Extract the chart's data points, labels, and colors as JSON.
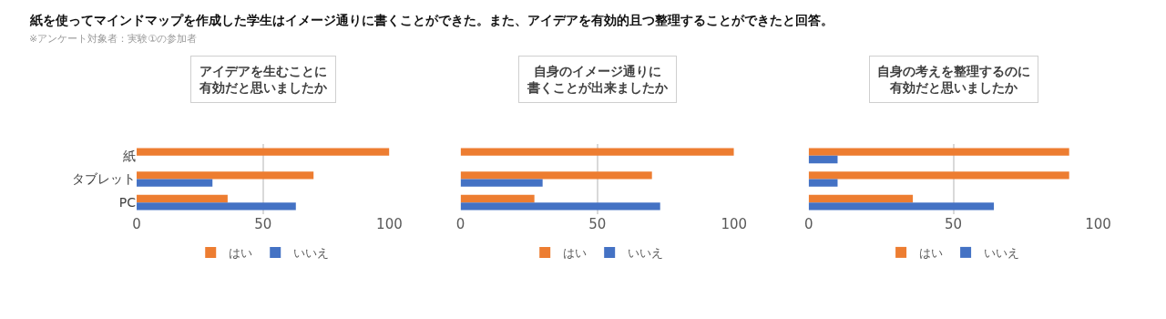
{
  "chart_data": [
    {
      "type": "bar",
      "orientation": "horizontal",
      "title": "アイデアを生むことに有効だと思いましたか",
      "annotations": [
        "紙を使ってマインドマップを作成した学生はイメージ通りに書くことができた。また、アイデアを有効的且つ整理することができたと回答。",
        "※アンケート対象者：実験①の参加者"
      ],
      "categories": [
        "紙",
        "タブレット",
        "PC"
      ],
      "series": [
        {
          "name": "はい",
          "color": "#ed7d31",
          "values": [
            100,
            70,
            36
          ]
        },
        {
          "name": "いいえ",
          "color": "#4472c4",
          "values": [
            0,
            30,
            63
          ]
        }
      ],
      "xlim": [
        0,
        100
      ],
      "xticks": [
        0,
        50,
        100
      ],
      "grid": "x",
      "legend": "bottom"
    },
    {
      "type": "bar",
      "orientation": "horizontal",
      "title": "自身のイメージ通りに書くことが出来ましたか",
      "categories": [
        null,
        null,
        null
      ],
      "series": [
        {
          "name": "はい",
          "color": "#ed7d31",
          "values": [
            100,
            70,
            27
          ]
        },
        {
          "name": "いいえ",
          "color": "#4472c4",
          "values": [
            0,
            30,
            73
          ]
        }
      ],
      "xlim": [
        0,
        100
      ],
      "xticks": [
        0,
        50,
        100
      ],
      "grid": "x",
      "legend": "bottom",
      "tick_labels": "x"
    },
    {
      "type": "bar",
      "orientation": "horizontal",
      "title": "自身の考えを整理するのに有効だと思いましたか",
      "categories": [
        null,
        null,
        null
      ],
      "series": [
        {
          "name": "はい",
          "color": "#ed7d31",
          "values": [
            90,
            90,
            36
          ]
        },
        {
          "name": "いいえ",
          "color": "#4472c4",
          "values": [
            10,
            10,
            64
          ]
        }
      ],
      "xlim": [
        0,
        100
      ],
      "xticks": [
        0,
        50,
        100
      ],
      "grid": "x",
      "legend": "bottom",
      "tick_labels": "x"
    }
  ]
}
